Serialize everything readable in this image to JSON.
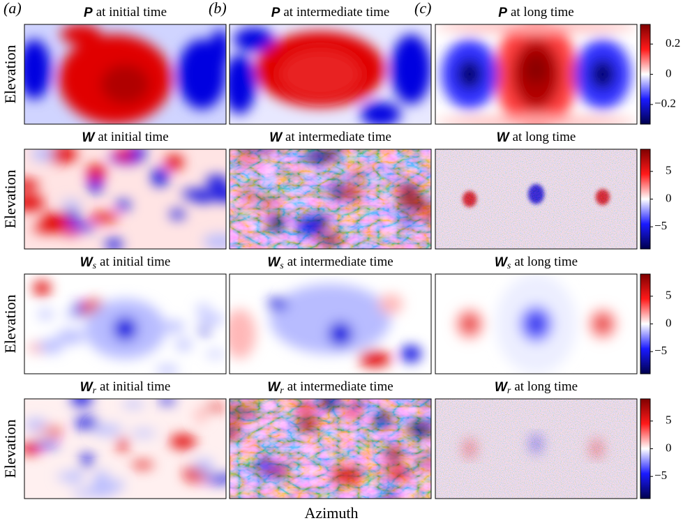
{
  "panel_labels": [
    "(a)",
    "(b)",
    "(c)"
  ],
  "y_label": "Elevation",
  "x_label": "Azimuth",
  "rows": [
    {
      "symbol": "P",
      "titles": [
        "at initial time",
        "at intermediate time",
        "at long time"
      ],
      "colorbar": {
        "lim": [
          -0.33,
          0.33
        ],
        "ticks": [
          {
            "value": -0.2,
            "label": "−0.2"
          },
          0,
          0.2
        ]
      }
    },
    {
      "symbol": "W",
      "titles": [
        "at initial time",
        "at intermediate time",
        "at long time"
      ],
      "colorbar": {
        "lim": [
          -9,
          9
        ],
        "ticks": [
          {
            "value": -5,
            "label": "−5"
          },
          0,
          5
        ]
      }
    },
    {
      "symbol": "W",
      "subscript": "s",
      "titles": [
        "at initial time",
        "at intermediate time",
        "at long time"
      ],
      "colorbar": {
        "lim": [
          -9,
          9
        ],
        "ticks": [
          {
            "value": -5,
            "label": "−5"
          },
          0,
          5
        ]
      }
    },
    {
      "symbol": "W",
      "subscript": "r",
      "titles": [
        "at initial time",
        "at intermediate time",
        "at long time"
      ],
      "colorbar": {
        "lim": [
          -9,
          9
        ],
        "ticks": [
          {
            "value": -5,
            "label": "−5"
          },
          0,
          5
        ]
      }
    }
  ]
}
